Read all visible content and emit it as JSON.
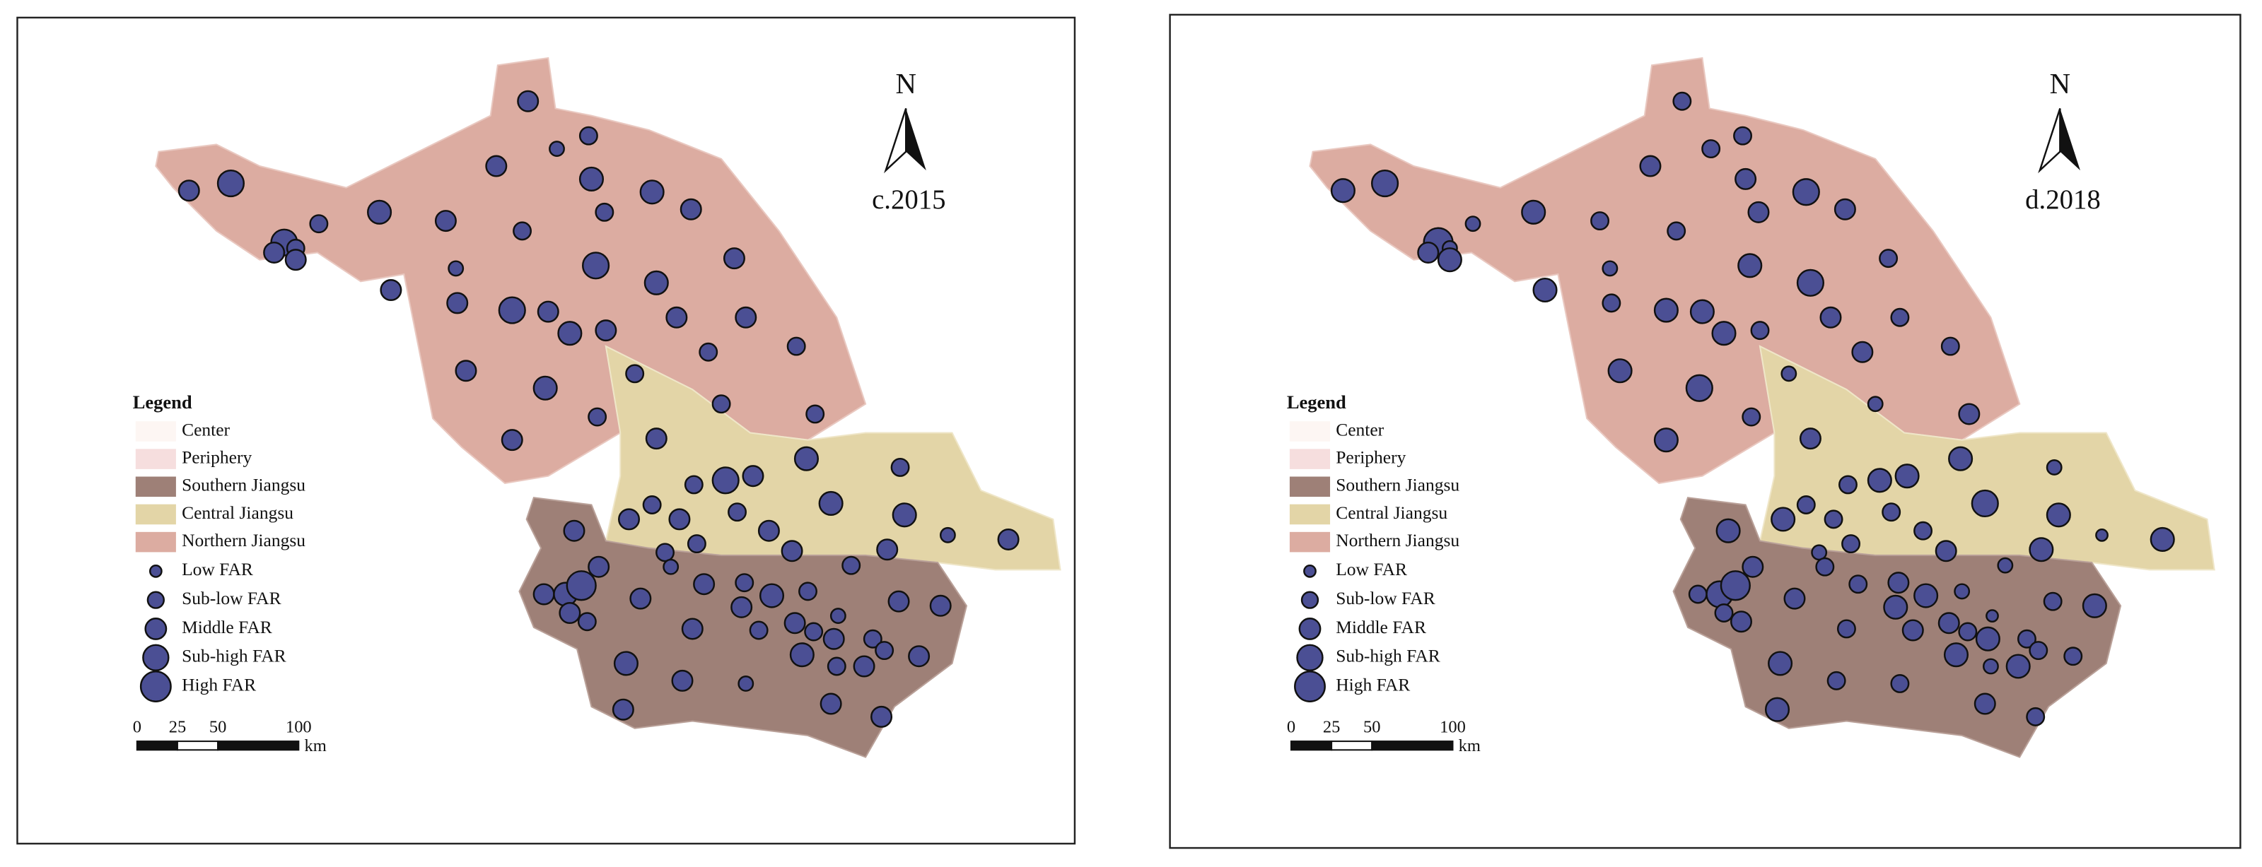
{
  "maps": [
    {
      "label": "c.2015"
    },
    {
      "label": "d.2018"
    }
  ],
  "north": "N",
  "legend": {
    "title": "Legend",
    "regions": [
      {
        "name": "Center",
        "color": "#fdf6f3"
      },
      {
        "name": "Periphery",
        "color": "#f6dede"
      },
      {
        "name": "Southern Jiangsu",
        "color": "#9e8077"
      },
      {
        "name": "Central Jiangsu",
        "color": "#e3d5a7"
      },
      {
        "name": "Northern Jiangsu",
        "color": "#dcaca1"
      }
    ],
    "far_classes": [
      "Low FAR",
      "Sub-low FAR",
      "Middle FAR",
      "Sub-high FAR",
      "High FAR"
    ]
  },
  "scale_bar": {
    "ticks": [
      0,
      25,
      50,
      100
    ],
    "unit": "km"
  }
}
